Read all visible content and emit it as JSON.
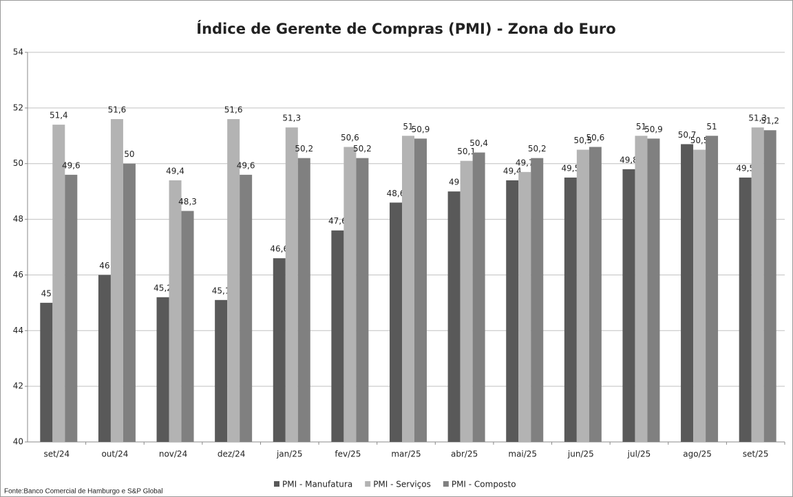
{
  "chart_data": {
    "type": "bar",
    "title": "Índice de Gerente de Compras (PMI) - Zona do Euro",
    "source": "Fonte:Banco Comercial de Hamburgo e S&P Global",
    "categories": [
      "set/24",
      "out/24",
      "nov/24",
      "dez/24",
      "jan/25",
      "fev/25",
      "mar/25",
      "abr/25",
      "mai/25",
      "jun/25",
      "jul/25",
      "ago/25",
      "set/25"
    ],
    "series": [
      {
        "name": "PMI - Manufatura",
        "color": "#595959",
        "values": [
          45,
          46,
          45.2,
          45.1,
          46.6,
          47.6,
          48.6,
          49,
          49.4,
          49.5,
          49.8,
          50.7,
          49.5
        ],
        "value_labels": [
          "45",
          "46",
          "45,2",
          "45,1",
          "46,6",
          "47,6",
          "48,6",
          "49",
          "49,4",
          "49,5",
          "49,8",
          "50,7",
          "49,5"
        ]
      },
      {
        "name": "PMI - Serviços",
        "color": "#b3b3b3",
        "values": [
          51.4,
          51.6,
          49.4,
          51.6,
          51.3,
          50.6,
          51,
          50.1,
          49.7,
          50.5,
          51,
          50.5,
          51.3
        ],
        "value_labels": [
          "51,4",
          "51,6",
          "49,4",
          "51,6",
          "51,3",
          "50,6",
          "51",
          "50,1",
          "49,7",
          "50,5",
          "51",
          "50,5",
          "51,3"
        ]
      },
      {
        "name": "PMI - Composto",
        "color": "#808080",
        "values": [
          49.6,
          50,
          48.3,
          49.6,
          50.2,
          50.2,
          50.9,
          50.4,
          50.2,
          50.6,
          50.9,
          51,
          51.2
        ],
        "value_labels": [
          "49,6",
          "50",
          "48,3",
          "49,6",
          "50,2",
          "50,2",
          "50,9",
          "50,4",
          "50,2",
          "50,6",
          "50,9",
          "51",
          "51,2"
        ]
      }
    ],
    "ylim": [
      40,
      54
    ],
    "yticks": [
      40,
      42,
      44,
      46,
      48,
      50,
      52,
      54
    ],
    "grid": true,
    "legend": "bottom"
  }
}
